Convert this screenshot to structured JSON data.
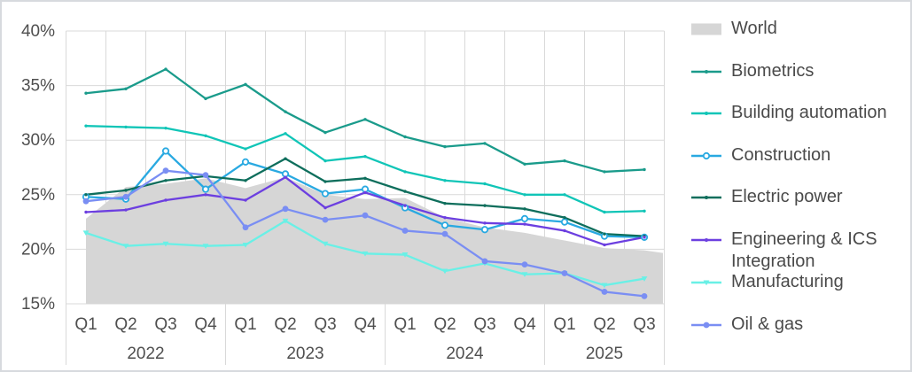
{
  "chart_data": {
    "type": "line",
    "title": "",
    "subtitle": "",
    "xlabel": "",
    "ylabel": "",
    "grid": true,
    "legend_position": "right",
    "y_axis": {
      "min": 15,
      "max": 40,
      "step": 5,
      "tick_labels": [
        "40%",
        "35%",
        "30%",
        "25%",
        "20%",
        "15%"
      ],
      "format": "percent"
    },
    "categories": [
      "Q1",
      "Q2",
      "Q3",
      "Q4",
      "Q1",
      "Q2",
      "Q3",
      "Q4",
      "Q1",
      "Q2",
      "Q3",
      "Q4",
      "Q1",
      "Q2",
      "Q3"
    ],
    "year_groups": [
      {
        "label": "2022",
        "quarters": 4
      },
      {
        "label": "2023",
        "quarters": 4
      },
      {
        "label": "2024",
        "quarters": 4
      },
      {
        "label": "2025",
        "quarters": 3
      }
    ],
    "series": [
      {
        "name": "World",
        "type": "area",
        "color": "#d6d6d6",
        "marker": "none",
        "values": [
          22.8,
          25.7,
          26.0,
          26.5,
          25.6,
          26.6,
          25.0,
          24.6,
          24.7,
          22.9,
          22.0,
          21.5,
          20.8,
          20.1,
          19.9
        ]
      },
      {
        "name": "Biometrics",
        "type": "line",
        "color": "#1a9b8b",
        "marker": "dot",
        "values": [
          34.3,
          34.7,
          36.5,
          33.8,
          35.1,
          32.6,
          30.7,
          31.9,
          30.3,
          29.4,
          29.7,
          27.8,
          28.1,
          27.1,
          27.3
        ]
      },
      {
        "name": "Building automation",
        "type": "line",
        "color": "#10c5b7",
        "marker": "dot",
        "values": [
          31.3,
          31.2,
          31.1,
          30.4,
          29.2,
          30.6,
          28.1,
          28.5,
          27.1,
          26.3,
          26.0,
          25.0,
          25.0,
          23.4,
          23.5
        ]
      },
      {
        "name": "Construction",
        "type": "line",
        "color": "#29a9e1",
        "marker": "open-circle",
        "values": [
          24.8,
          24.6,
          29.0,
          25.5,
          28.0,
          26.9,
          25.1,
          25.5,
          23.8,
          22.2,
          21.8,
          22.8,
          22.5,
          21.2,
          21.1
        ]
      },
      {
        "name": "Electric power",
        "type": "line",
        "color": "#0e6e5c",
        "marker": "dot",
        "values": [
          25.0,
          25.4,
          26.3,
          26.7,
          26.3,
          28.3,
          26.2,
          26.5,
          25.3,
          24.2,
          24.0,
          23.7,
          22.9,
          21.4,
          21.2
        ]
      },
      {
        "name": "Engineering & ICS Integration",
        "type": "line",
        "color": "#6c3fe0",
        "marker": "dot",
        "values": [
          23.4,
          23.6,
          24.5,
          25.0,
          24.5,
          26.6,
          23.8,
          25.2,
          24.0,
          22.9,
          22.4,
          22.3,
          21.7,
          20.4,
          21.1
        ]
      },
      {
        "name": "Manufacturing",
        "type": "line",
        "color": "#69f0e6",
        "marker": "triangle-down",
        "values": [
          21.5,
          20.3,
          20.5,
          20.3,
          20.4,
          22.6,
          20.5,
          19.6,
          19.5,
          18.0,
          18.7,
          17.7,
          17.8,
          16.7,
          17.3
        ]
      },
      {
        "name": "Oil & gas",
        "type": "line",
        "color": "#7a8ef3",
        "marker": "big-dot",
        "values": [
          24.4,
          24.8,
          27.2,
          26.8,
          22.0,
          23.7,
          22.7,
          23.1,
          21.7,
          21.4,
          18.9,
          18.6,
          17.8,
          16.1,
          15.7
        ]
      }
    ],
    "gridline_color": "#d9d9d9",
    "axis_text_color": "#4f4f4f",
    "legend_text_color": "#4a4a4a"
  }
}
